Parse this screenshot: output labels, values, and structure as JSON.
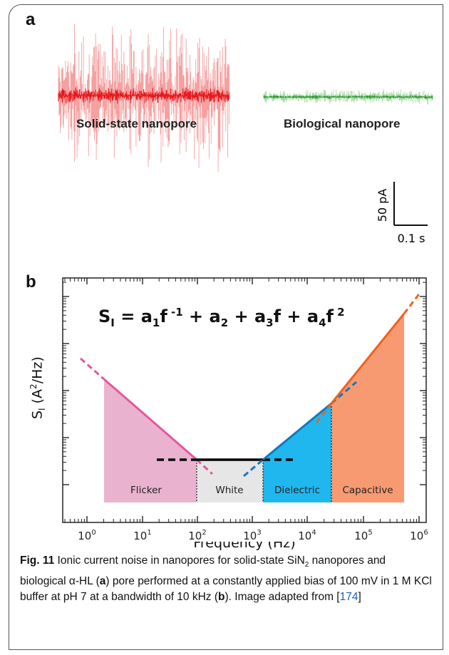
{
  "panel_a": {
    "letter": "a",
    "solid_label": "Solid-state nanopore",
    "bio_label": "Biological nanopore",
    "scale_y_label": "50 pA",
    "scale_x_label": "0.1 s",
    "colors": {
      "solid_light": "#f6a0a0",
      "solid_dark": "#e8191e",
      "bio_light": "#a9dca9",
      "bio_dark": "#2e9a2e"
    }
  },
  "panel_b": {
    "letter": "b",
    "ylabel_main": "S",
    "ylabel_sub": "I",
    "ylabel_unit_open": " (A",
    "ylabel_unit_sup": "2",
    "ylabel_unit_close": "/Hz)",
    "xlabel": "Frequency (Hz)",
    "equation": {
      "s": "S",
      "s_sub": "I",
      "eq": " = a",
      "sub1": "1",
      "f1": "f",
      "exp1": " -1",
      "plus2": " + a",
      "sub2": "2",
      "plus3": " + a",
      "sub3": "3",
      "f3": "f",
      "plus4": " + a",
      "sub4": "4",
      "f4": "f",
      "exp4": " 2"
    },
    "regions": [
      {
        "label": "Flicker",
        "color": "#e9b3cf"
      },
      {
        "label": "White",
        "color": "#e6e6e6"
      },
      {
        "label": "Dielectric",
        "color": "#1fb7ee"
      },
      {
        "label": "Capacitive",
        "color": "#f79a72"
      }
    ],
    "x_ticks": [
      {
        "base": "10",
        "exp": "0"
      },
      {
        "base": "10",
        "exp": "1"
      },
      {
        "base": "10",
        "exp": "2"
      },
      {
        "base": "10",
        "exp": "3"
      },
      {
        "base": "10",
        "exp": "4"
      },
      {
        "base": "10",
        "exp": "5"
      },
      {
        "base": "10",
        "exp": "6"
      }
    ],
    "line_colors": {
      "flicker": "#e8559f",
      "white": "#000000",
      "dielectric": "#1478c0",
      "capacitive": "#f0621e"
    }
  },
  "caption": {
    "fig": "Fig. 11",
    "t1": "  Ionic current noise in nanopores for solid-state SiN",
    "sub": "2",
    "t2": " nanopores and biological α-HL (",
    "a": "a",
    "t3": ") pore performed at a constantly applied bias of 100 mV in 1 M KCl buffer at pH 7 at a bandwidth of 10 kHz (",
    "b": "b",
    "t4": "). Image adapted from [",
    "ref": "174",
    "t5": "]"
  }
}
